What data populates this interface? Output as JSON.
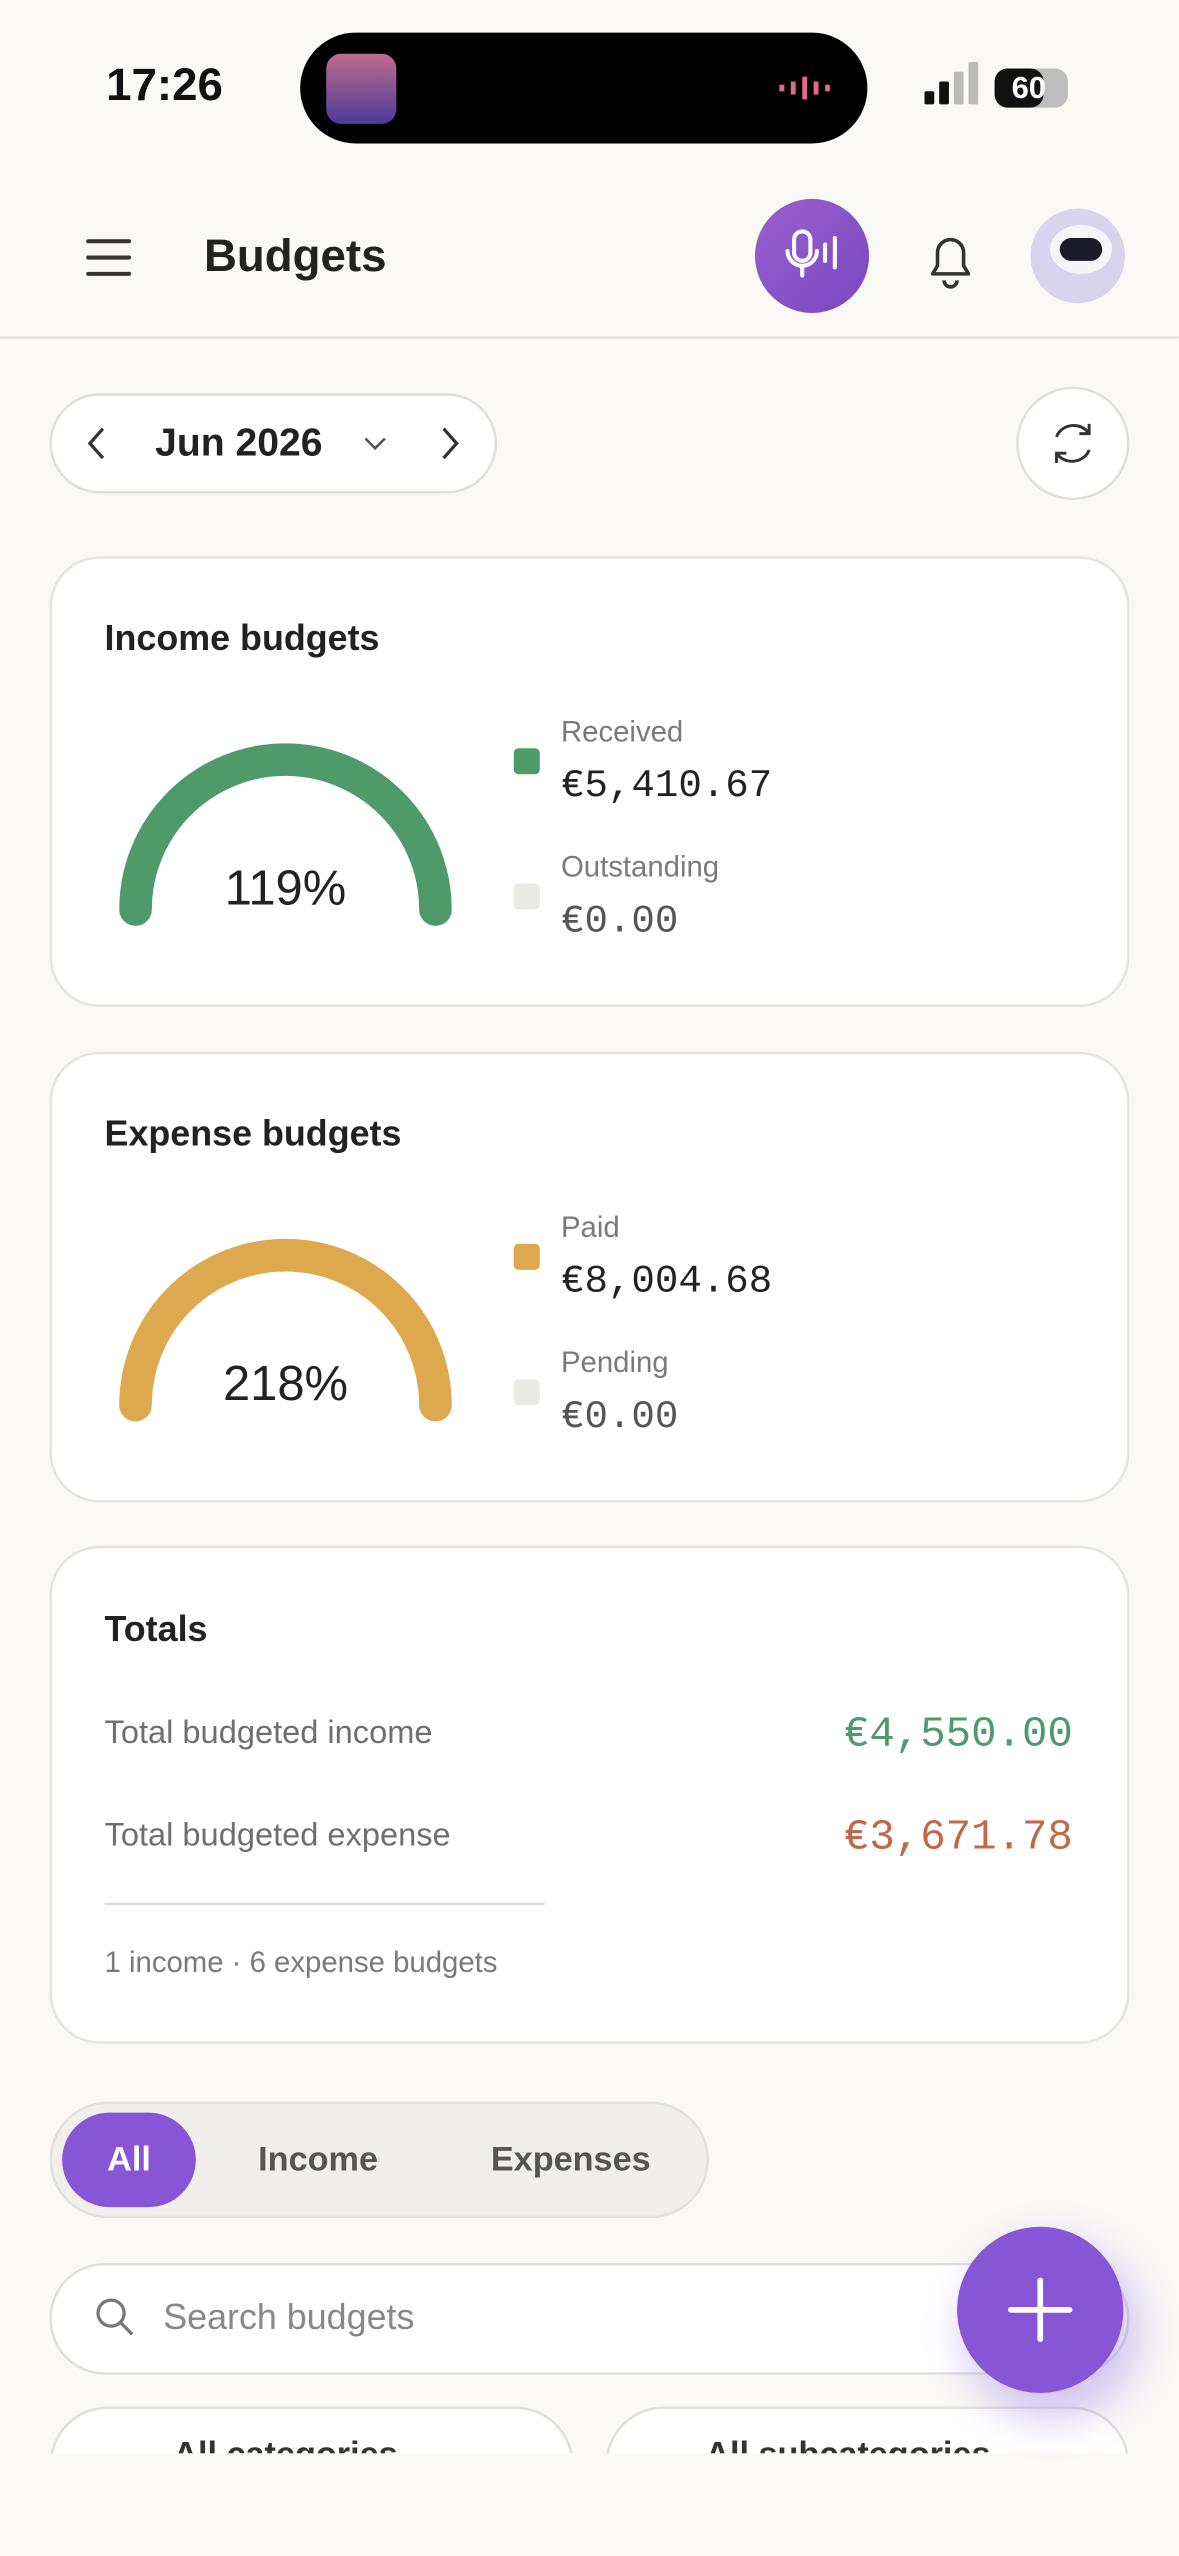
{
  "status_bar": {
    "time": "17:26",
    "battery": "60"
  },
  "header": {
    "title": "Budgets"
  },
  "month_selector": {
    "label": "Jun 2026"
  },
  "income_card": {
    "title": "Income budgets",
    "percent": "119%",
    "legend": [
      {
        "label": "Received",
        "value": "€5,410.67"
      },
      {
        "label": "Outstanding",
        "value": "€0.00"
      }
    ]
  },
  "expense_card": {
    "title": "Expense budgets",
    "percent": "218%",
    "legend": [
      {
        "label": "Paid",
        "value": "€8,004.68"
      },
      {
        "label": "Pending",
        "value": "€0.00"
      }
    ]
  },
  "totals": {
    "title": "Totals",
    "rows": [
      {
        "label": "Total budgeted income",
        "value": "€4,550.00"
      },
      {
        "label": "Total budgeted expense",
        "value": "€3,671.78"
      }
    ],
    "summary": "1 income · 6 expense budgets"
  },
  "filter_tabs": [
    "All",
    "Income",
    "Expenses"
  ],
  "search": {
    "placeholder": "Search budgets"
  },
  "filters": [
    "All categories",
    "All subcategories"
  ]
}
